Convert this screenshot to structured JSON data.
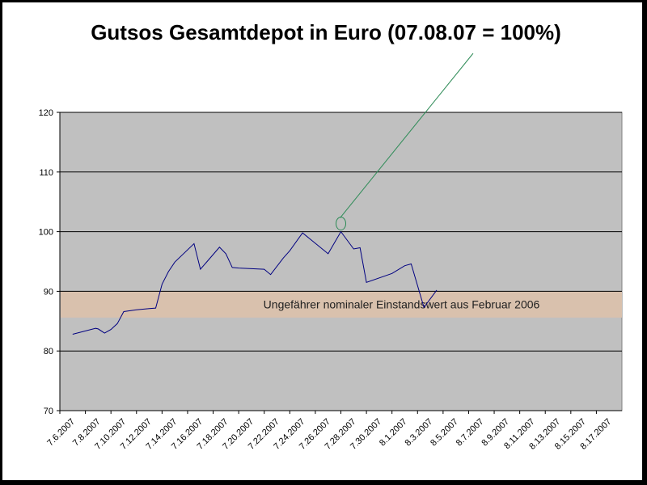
{
  "chart_data": {
    "type": "line",
    "title": "Gutsos Gesamtdepot in Euro  (07.08.07 = 100%)",
    "xlabel": "",
    "ylabel": "",
    "ylim": [
      70,
      120
    ],
    "yticks": [
      70,
      80,
      90,
      100,
      110,
      120
    ],
    "grid": true,
    "legend": "none",
    "x_tick_labels": [
      "7.6.2007",
      "7.8.2007",
      "7.10.2007",
      "7.12.2007",
      "7.14.2007",
      "7.16.2007",
      "7.18.2007",
      "7.20.2007",
      "7.22.2007",
      "7.24.2007",
      "7.26.2007",
      "7.28.2007",
      "7.30.2007",
      "8.1.2007",
      "8.3.2007",
      "8.5.2007",
      "8.7.2007",
      "8.9.2007",
      "8.11.2007",
      "8.13.2007",
      "8.15.2007",
      "8.17.2007"
    ],
    "series": [
      {
        "color": "#000080",
        "points": [
          [
            0,
            82.8
          ],
          [
            1.8,
            83.8
          ],
          [
            2.0,
            83.7
          ],
          [
            2.5,
            83.0
          ],
          [
            3.0,
            83.6
          ],
          [
            3.5,
            84.6
          ],
          [
            4.0,
            86.6
          ],
          [
            5.0,
            86.9
          ],
          [
            6.0,
            87.1
          ],
          [
            6.5,
            87.2
          ],
          [
            7.0,
            91.2
          ],
          [
            7.5,
            93.3
          ],
          [
            8.0,
            94.9
          ],
          [
            9.5,
            98.0
          ],
          [
            10.0,
            93.7
          ],
          [
            11.5,
            97.4
          ],
          [
            12.0,
            96.3
          ],
          [
            12.5,
            94.0
          ],
          [
            13.0,
            93.9
          ],
          [
            15.0,
            93.7
          ],
          [
            15.5,
            92.8
          ],
          [
            16.5,
            95.6
          ],
          [
            17.0,
            96.8
          ],
          [
            18.0,
            99.8
          ],
          [
            20.0,
            96.3
          ],
          [
            21.0,
            100.0
          ],
          [
            22.0,
            97.1
          ],
          [
            22.5,
            97.3
          ],
          [
            23.0,
            91.5
          ],
          [
            25.0,
            93.0
          ],
          [
            26.0,
            94.3
          ],
          [
            26.5,
            94.6
          ],
          [
            27.5,
            87.3
          ],
          [
            28.5,
            90.2
          ]
        ]
      }
    ],
    "band": {
      "from": 85.6,
      "to": 90.0,
      "color": "#d9c1ad",
      "label": "Ungefährer nominaler Einstandswert aus Februar 2006"
    },
    "plot_color": "#c0c0c0",
    "annotation_color": "#2e8b57"
  }
}
